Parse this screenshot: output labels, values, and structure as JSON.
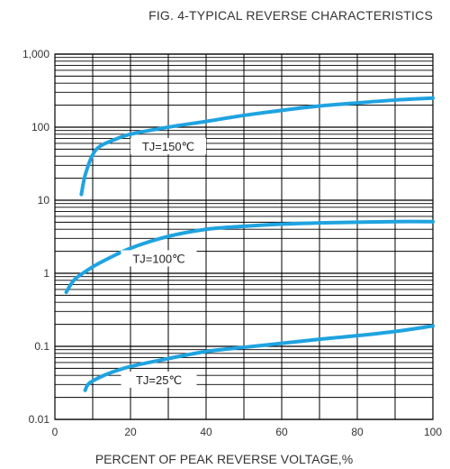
{
  "chart_data": {
    "type": "line",
    "title": "FIG. 4-TYPICAL REVERSE CHARACTERISTICS",
    "xlabel": "PERCENT OF PEAK REVERSE VOLTAGE,%",
    "ylabel": "",
    "xlim": [
      0,
      100
    ],
    "ylim": [
      0.01,
      1000
    ],
    "yscale": "log",
    "grid": true,
    "x_ticks": [
      0,
      20,
      40,
      60,
      80,
      100
    ],
    "x_tick_labels": [
      "0",
      "20",
      "40",
      "60",
      "80",
      "100"
    ],
    "y_ticks": [
      0.01,
      0.1,
      1,
      10,
      100,
      1000
    ],
    "y_tick_labels": [
      "0.01",
      "0.1",
      "1",
      "10",
      "100",
      "1,000"
    ],
    "series": [
      {
        "name": "TJ=150℃",
        "color": "#1fa3e0",
        "x": [
          7,
          8,
          10,
          12,
          15,
          20,
          30,
          40,
          50,
          60,
          70,
          80,
          90,
          100
        ],
        "y": [
          12,
          22,
          42,
          55,
          65,
          80,
          100,
          120,
          145,
          170,
          195,
          215,
          235,
          250
        ]
      },
      {
        "name": "TJ=100℃",
        "color": "#1fa3e0",
        "x": [
          3,
          5,
          8,
          12,
          20,
          30,
          40,
          50,
          60,
          70,
          80,
          90,
          100
        ],
        "y": [
          0.55,
          0.8,
          1.05,
          1.4,
          2.2,
          3.2,
          4.0,
          4.4,
          4.7,
          4.9,
          5.0,
          5.1,
          5.1
        ]
      },
      {
        "name": "TJ=25℃",
        "color": "#1fa3e0",
        "x": [
          8,
          9,
          12,
          15,
          20,
          30,
          40,
          50,
          60,
          70,
          80,
          90,
          100
        ],
        "y": [
          0.025,
          0.031,
          0.038,
          0.044,
          0.053,
          0.068,
          0.085,
          0.097,
          0.11,
          0.125,
          0.14,
          0.16,
          0.19
        ]
      }
    ]
  }
}
